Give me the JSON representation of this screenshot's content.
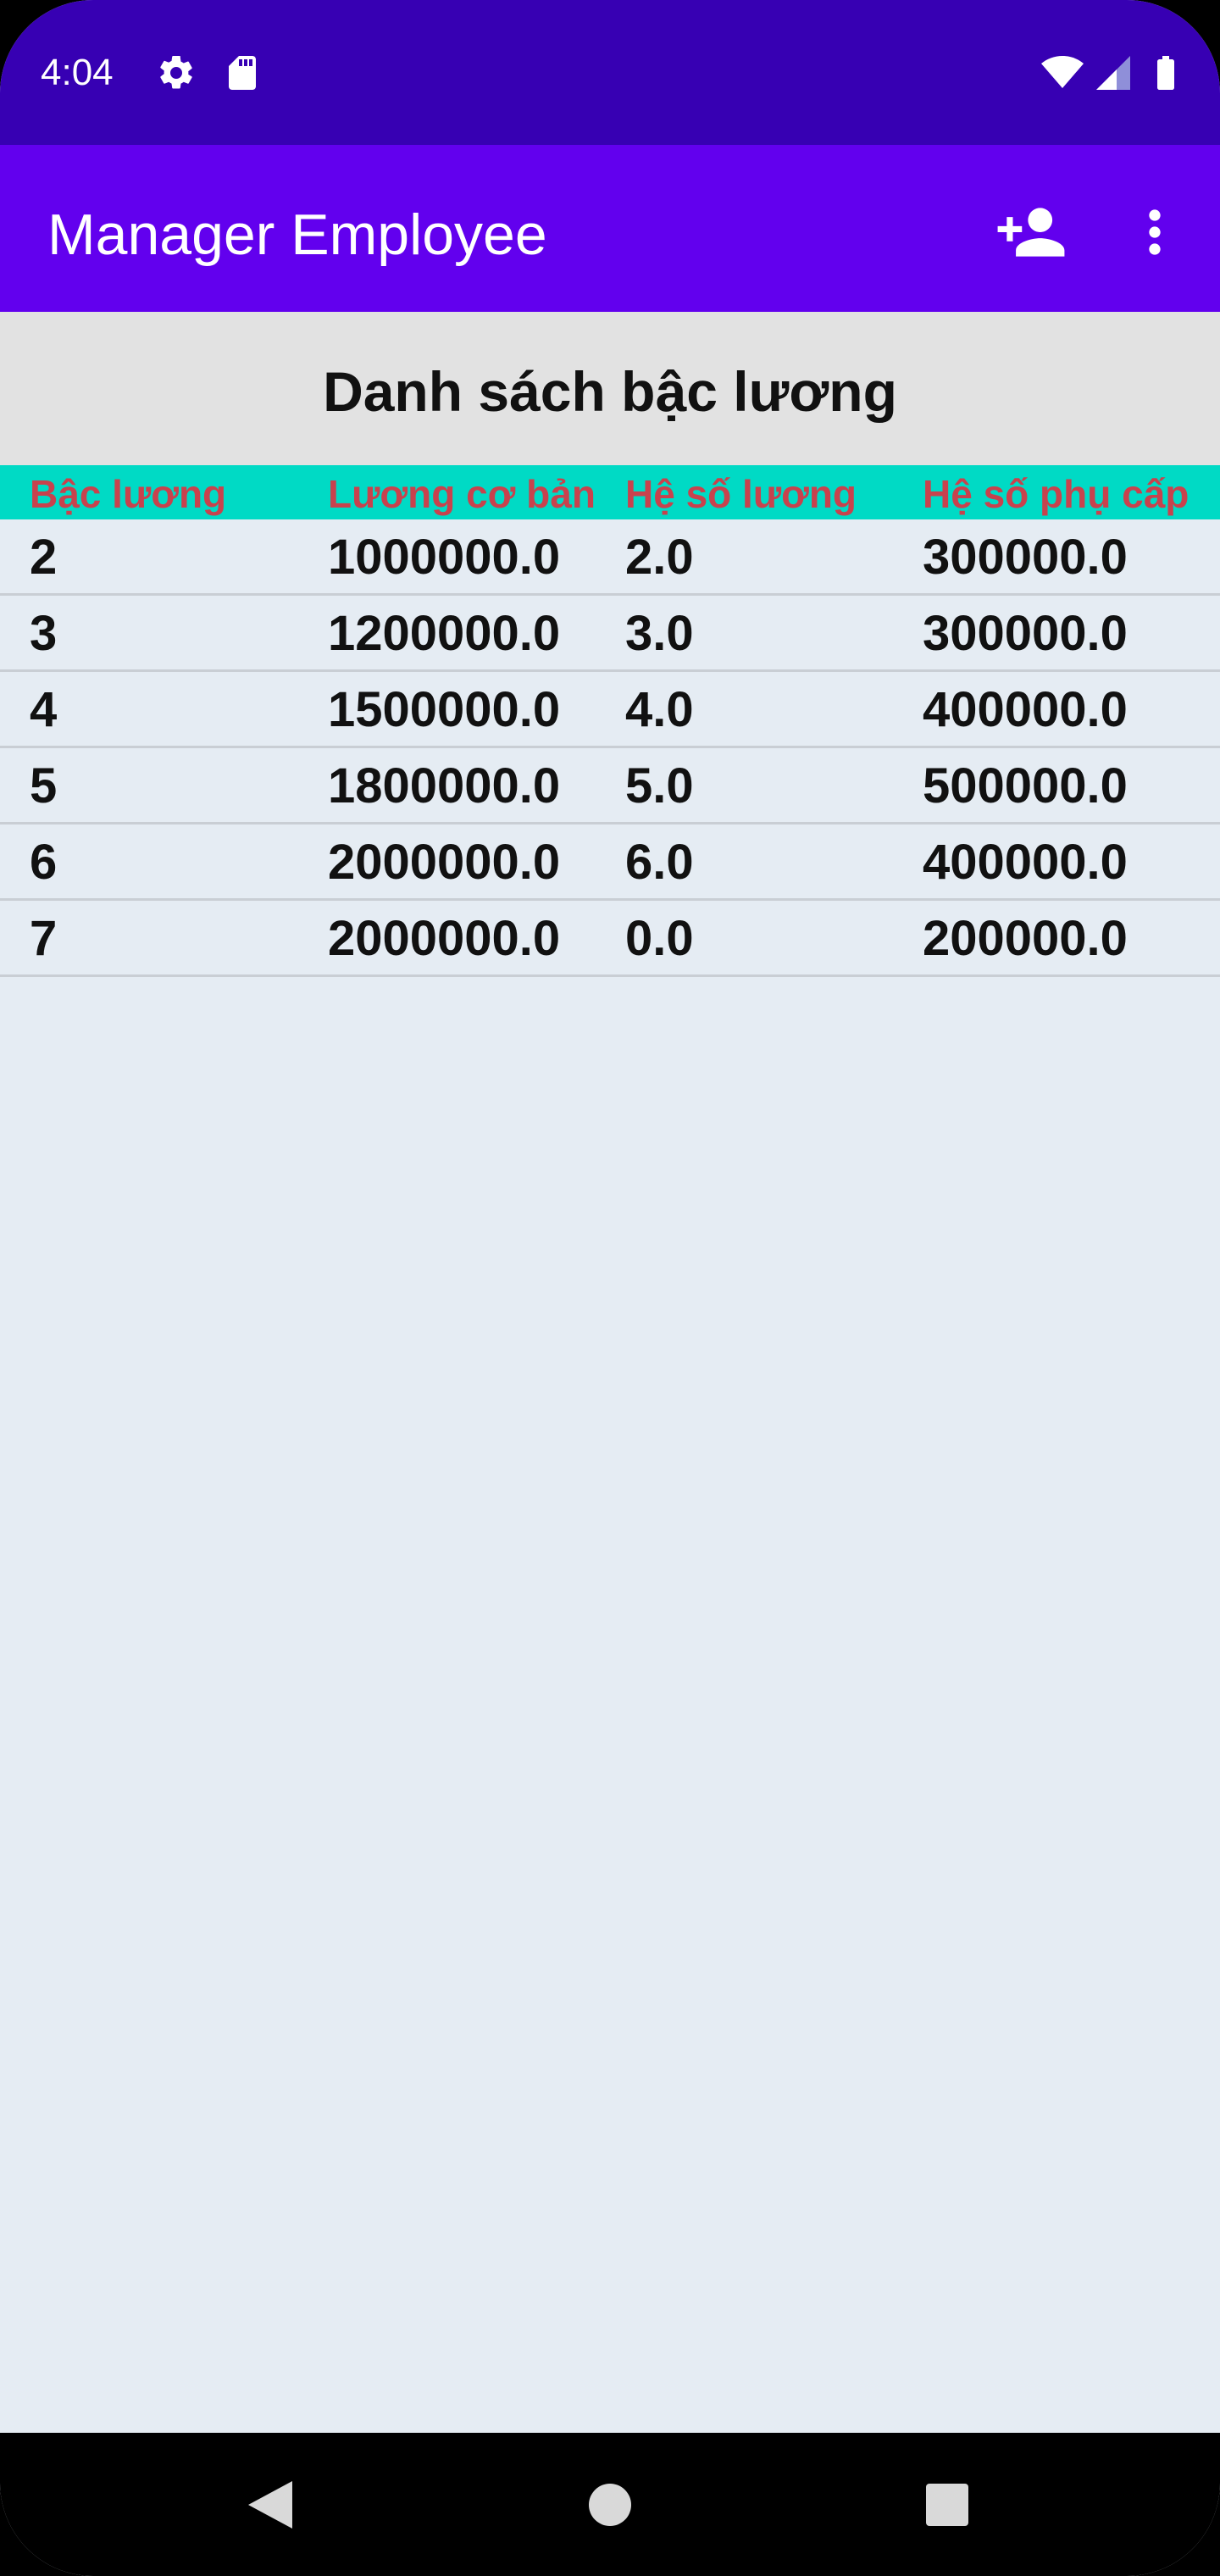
{
  "status_bar": {
    "time": "4:04",
    "icons": [
      "gear-icon",
      "sd-card-icon",
      "wifi-icon",
      "signal-icon",
      "battery-icon"
    ]
  },
  "app_bar": {
    "title": "Manager Employee",
    "actions": [
      "person-add-icon",
      "more-vert-icon"
    ]
  },
  "page": {
    "title": "Danh sách bậc lương"
  },
  "table": {
    "headers": [
      "Bậc lương",
      "Lương cơ bản",
      "Hệ số lương",
      "Hệ số phụ cấp"
    ],
    "rows": [
      [
        "2",
        "1000000.0",
        "2.0",
        "300000.0"
      ],
      [
        "3",
        "1200000.0",
        "3.0",
        "300000.0"
      ],
      [
        "4",
        "1500000.0",
        "4.0",
        "400000.0"
      ],
      [
        "5",
        "1800000.0",
        "5.0",
        "500000.0"
      ],
      [
        "6",
        "2000000.0",
        "6.0",
        "400000.0"
      ],
      [
        "7",
        "2000000.0",
        "0.0",
        "200000.0"
      ]
    ]
  },
  "nav_bar": {
    "buttons": [
      "back-icon",
      "home-icon",
      "recents-icon"
    ]
  },
  "colors": {
    "status_bar": "#3700b3",
    "app_bar": "#6200ee",
    "header_band": "#e2e2e2",
    "table_header": "#00dac5",
    "table_header_text": "#c8424d",
    "background": "#e5ecf3"
  }
}
